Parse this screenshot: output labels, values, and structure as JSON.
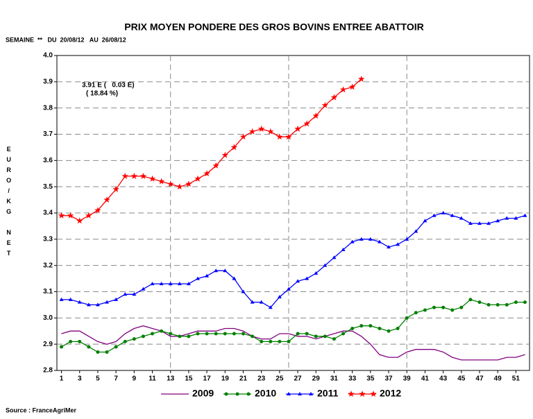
{
  "chart_data": {
    "type": "line",
    "title": "PRIX MOYEN PONDERE DES GROS BOVINS ENTREE ABATTOIR",
    "subtitle": "SEMAINE  **   DU  20/08/12   AU  26/08/12",
    "y_label": "EURO/KG NET",
    "annotations": [
      "3.91 E (   0.03 E)",
      "( 18.84 %)"
    ],
    "source": "Source : FranceAgriMer",
    "x": [
      1,
      2,
      3,
      4,
      5,
      6,
      7,
      8,
      9,
      10,
      11,
      12,
      13,
      14,
      15,
      16,
      17,
      18,
      19,
      20,
      21,
      22,
      23,
      24,
      25,
      26,
      27,
      28,
      29,
      30,
      31,
      32,
      33,
      34,
      35,
      36,
      37,
      38,
      39,
      40,
      41,
      42,
      43,
      44,
      45,
      46,
      47,
      48,
      49,
      50,
      51,
      52
    ],
    "xlim": [
      0.5,
      52.5
    ],
    "xticks": [
      1,
      3,
      5,
      7,
      9,
      11,
      13,
      15,
      17,
      19,
      21,
      23,
      25,
      27,
      29,
      31,
      33,
      35,
      37,
      39,
      41,
      43,
      45,
      47,
      49,
      51
    ],
    "x_grid_at": [
      13,
      26,
      39
    ],
    "ylim": [
      2.8,
      4.0
    ],
    "yticks": [
      2.8,
      2.9,
      {
        "value": 3.0,
        "label": "3.0"
      },
      3.1,
      3.2,
      3.3,
      3.4,
      3.5,
      3.6,
      3.7,
      3.8,
      3.9,
      {
        "value": 4.0,
        "label": "4.0"
      }
    ],
    "grid": true,
    "legend": "bottom",
    "series": [
      {
        "name": "2009",
        "color": "#800080",
        "marker": "none",
        "values": [
          2.94,
          2.95,
          2.95,
          2.93,
          2.91,
          2.9,
          2.91,
          2.94,
          2.96,
          2.97,
          2.96,
          2.95,
          2.93,
          2.93,
          2.94,
          2.95,
          2.95,
          2.95,
          2.96,
          2.96,
          2.95,
          2.93,
          2.92,
          2.92,
          2.94,
          2.94,
          2.93,
          2.93,
          2.92,
          2.93,
          2.94,
          2.95,
          2.95,
          2.93,
          2.9,
          2.86,
          2.85,
          2.85,
          2.87,
          2.88,
          2.88,
          2.88,
          2.87,
          2.85,
          2.84,
          2.84,
          2.84,
          2.84,
          2.84,
          2.85,
          2.85,
          2.86
        ]
      },
      {
        "name": "2010",
        "color": "#008000",
        "marker": "circle",
        "values": [
          2.89,
          2.91,
          2.91,
          2.89,
          2.87,
          2.87,
          2.89,
          2.91,
          2.92,
          2.93,
          2.94,
          2.95,
          2.94,
          2.93,
          2.93,
          2.94,
          2.94,
          2.94,
          2.94,
          2.94,
          2.94,
          2.93,
          2.91,
          2.91,
          2.91,
          2.91,
          2.94,
          2.94,
          2.93,
          2.93,
          2.92,
          2.94,
          2.96,
          2.97,
          2.97,
          2.96,
          2.95,
          2.96,
          3.0,
          3.02,
          3.03,
          3.04,
          3.04,
          3.03,
          3.04,
          3.07,
          3.06,
          3.05,
          3.05,
          3.05,
          3.06,
          3.06
        ]
      },
      {
        "name": "2011",
        "color": "#0000ff",
        "marker": "triangle",
        "values": [
          3.07,
          3.07,
          3.06,
          3.05,
          3.05,
          3.06,
          3.07,
          3.09,
          3.09,
          3.11,
          3.13,
          3.13,
          3.13,
          3.13,
          3.13,
          3.15,
          3.16,
          3.18,
          3.18,
          3.15,
          3.1,
          3.06,
          3.06,
          3.04,
          3.08,
          3.11,
          3.14,
          3.15,
          3.17,
          3.2,
          3.23,
          3.26,
          3.29,
          3.3,
          3.3,
          3.29,
          3.27,
          3.28,
          3.3,
          3.33,
          3.37,
          3.39,
          3.4,
          3.39,
          3.38,
          3.36,
          3.36,
          3.36,
          3.37,
          3.38,
          3.38,
          3.39
        ]
      },
      {
        "name": "2012",
        "color": "#ff0000",
        "marker": "star",
        "values": [
          3.39,
          3.39,
          3.37,
          3.39,
          3.41,
          3.45,
          3.49,
          3.54,
          3.54,
          3.54,
          3.53,
          3.52,
          3.51,
          3.5,
          3.51,
          3.53,
          3.55,
          3.58,
          3.62,
          3.65,
          3.69,
          3.71,
          3.72,
          3.71,
          3.69,
          3.69,
          3.72,
          3.74,
          3.77,
          3.81,
          3.84,
          3.87,
          3.88,
          3.91,
          null,
          null,
          null,
          null,
          null,
          null,
          null,
          null,
          null,
          null,
          null,
          null,
          null,
          null,
          null,
          null,
          null,
          null
        ]
      }
    ]
  }
}
